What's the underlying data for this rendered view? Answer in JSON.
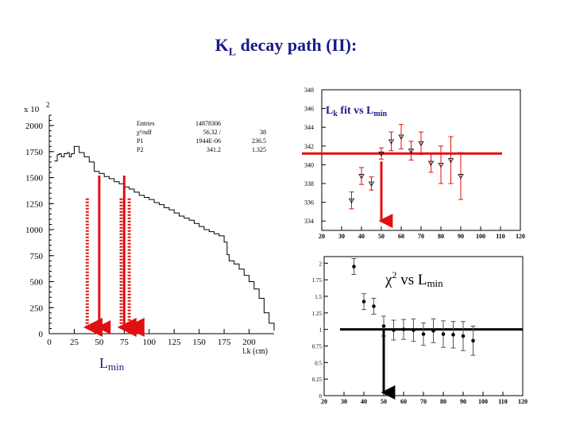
{
  "slide": {
    "title_main": "K",
    "title_sub": "L",
    "title_rest": " decay path (II):",
    "lmin_label": "L",
    "lmin_sub": "min"
  },
  "colors": {
    "arrow": "#e01010",
    "text": "#1a1a8a",
    "fitline_top": "#e01010",
    "fitline_bottom": "#000000"
  },
  "chart_data": [
    {
      "type": "histogram",
      "title": "",
      "xlabel": "l.k (cm)",
      "ylabel": "",
      "y_scale_label": "x 10",
      "y_scale_exp": "2",
      "xlim": [
        0,
        225
      ],
      "ylim": [
        0,
        2100
      ],
      "x_ticks": [
        "0",
        "25",
        "50",
        "75",
        "100",
        "125",
        "150",
        "175",
        "200"
      ],
      "y_ticks": [
        "0",
        "250",
        "500",
        "750",
        "1000",
        "1250",
        "1500",
        "1750",
        "2000"
      ],
      "stats": [
        {
          "name": "Entries",
          "v1": "14878306",
          "v2": ""
        },
        {
          "name": "χ²/ndf",
          "v1": "56.32   /",
          "v2": "38"
        },
        {
          "name": "P1",
          "v1": "1944E-06",
          "v2": "236.5"
        },
        {
          "name": "P2",
          "v1": "341.2",
          "v2": "1.325"
        }
      ],
      "curve": {
        "x": [
          5,
          8,
          10,
          12,
          15,
          18,
          20,
          22,
          25,
          28,
          30,
          35,
          40,
          45,
          50,
          55,
          60,
          65,
          70,
          75,
          80,
          85,
          90,
          95,
          100,
          105,
          110,
          115,
          120,
          125,
          130,
          135,
          140,
          145,
          150,
          155,
          160,
          165,
          170,
          175,
          178,
          180,
          185,
          190,
          195,
          200,
          205,
          210,
          215,
          220,
          225
        ],
        "y": [
          1660,
          1720,
          1730,
          1700,
          1730,
          1740,
          1700,
          1730,
          1800,
          1800,
          1740,
          1700,
          1650,
          1560,
          1540,
          1510,
          1490,
          1460,
          1440,
          1410,
          1390,
          1360,
          1330,
          1310,
          1290,
          1260,
          1240,
          1210,
          1190,
          1160,
          1130,
          1110,
          1090,
          1060,
          1030,
          1000,
          980,
          960,
          940,
          880,
          760,
          700,
          670,
          620,
          560,
          500,
          430,
          340,
          200,
          100,
          30
        ]
      },
      "markers": {
        "solid": [
          50,
          75
        ],
        "dashed": [
          38,
          72,
          80
        ],
        "label": "Lmin"
      }
    },
    {
      "type": "scatter",
      "title": "L",
      "title_sub": "k",
      "title_rest": " fit vs L",
      "title_sub2": "min",
      "xlim": [
        20,
        120
      ],
      "ylim": [
        333,
        348
      ],
      "x_ticks": [
        "20",
        "30",
        "40",
        "50",
        "60",
        "70",
        "80",
        "90",
        "100",
        "110",
        "120"
      ],
      "y_ticks": [
        "334",
        "336",
        "338",
        "340",
        "342",
        "344",
        "346",
        "348"
      ],
      "points": [
        {
          "x": 35,
          "y": 336.2,
          "err": 0.9
        },
        {
          "x": 40,
          "y": 338.8,
          "err": 0.9
        },
        {
          "x": 45,
          "y": 338.0,
          "err": 0.7
        },
        {
          "x": 50,
          "y": 341.2,
          "err": 0.6
        },
        {
          "x": 55,
          "y": 342.5,
          "err": 1.0
        },
        {
          "x": 60,
          "y": 343.0,
          "err": 1.3
        },
        {
          "x": 65,
          "y": 341.5,
          "err": 1.0
        },
        {
          "x": 70,
          "y": 342.3,
          "err": 1.2
        },
        {
          "x": 75,
          "y": 340.2,
          "err": 1.0
        },
        {
          "x": 80,
          "y": 340.0,
          "err": 2.0
        },
        {
          "x": 85,
          "y": 340.5,
          "err": 2.5
        },
        {
          "x": 90,
          "y": 338.8,
          "err": 2.5
        }
      ],
      "fit_line": 341.2,
      "marker_x": 50
    },
    {
      "type": "scatter",
      "title": "χ",
      "title_sup": "2",
      "title_rest": " vs L",
      "title_sub": "min",
      "xlim": [
        20,
        120
      ],
      "ylim": [
        0,
        2.1
      ],
      "x_ticks": [
        "20",
        "30",
        "40",
        "50",
        "60",
        "70",
        "80",
        "90",
        "100",
        "110",
        "120"
      ],
      "y_ticks": [
        "0",
        "0.25",
        "0.5",
        "0.75",
        "1",
        "1.25",
        "1.5",
        "1.75",
        "2"
      ],
      "points": [
        {
          "x": 35,
          "y": 1.95,
          "err": 0.12
        },
        {
          "x": 40,
          "y": 1.42,
          "err": 0.12
        },
        {
          "x": 45,
          "y": 1.35,
          "err": 0.12
        },
        {
          "x": 50,
          "y": 1.05,
          "err": 0.15
        },
        {
          "x": 55,
          "y": 0.99,
          "err": 0.15
        },
        {
          "x": 60,
          "y": 1.0,
          "err": 0.15
        },
        {
          "x": 65,
          "y": 0.99,
          "err": 0.17
        },
        {
          "x": 70,
          "y": 0.93,
          "err": 0.17
        },
        {
          "x": 75,
          "y": 0.98,
          "err": 0.18
        },
        {
          "x": 80,
          "y": 0.93,
          "err": 0.2
        },
        {
          "x": 85,
          "y": 0.92,
          "err": 0.2
        },
        {
          "x": 90,
          "y": 0.9,
          "err": 0.22
        },
        {
          "x": 95,
          "y": 0.83,
          "err": 0.22
        }
      ],
      "fit_line": 1.0,
      "marker_x": 50
    }
  ]
}
